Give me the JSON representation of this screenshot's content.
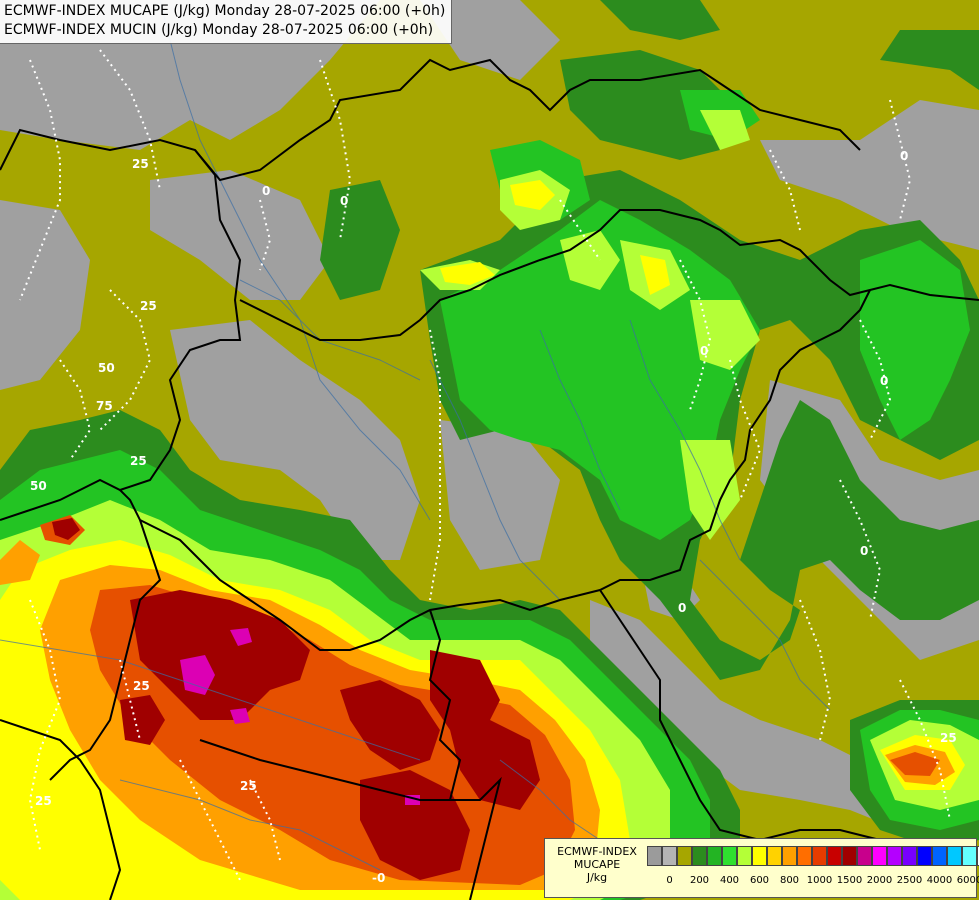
{
  "header": {
    "line1": "ECMWF-INDEX MUCAPE (J/kg) Monday 28-07-2025 06:00 (+0h)",
    "line2": "ECMWF-INDEX MUCIN (J/kg) Monday 28-07-2025 06:00 (+0h)"
  },
  "legend": {
    "title1": "ECMWF-INDEX",
    "title2": "MUCAPE",
    "unit": "J/kg",
    "colors": [
      "#9b9b9b",
      "#b4b4b4",
      "#a6a600",
      "#2c8c1e",
      "#23b423",
      "#2fe02f",
      "#b4ff37",
      "#ffff00",
      "#ffd200",
      "#ffa000",
      "#ff6e00",
      "#e63c00",
      "#c80000",
      "#a00000",
      "#c8008c",
      "#ff00ff",
      "#b400ff",
      "#7800ff",
      "#0000ff",
      "#0064ff",
      "#00c8ff",
      "#64ffff",
      "#ffffff"
    ],
    "ticks": [
      "0",
      "200",
      "400",
      "600",
      "800",
      "1000",
      "1500",
      "2000",
      "2500",
      "4000",
      "6000"
    ]
  },
  "contour_labels": [
    "25",
    "0",
    "50",
    "75",
    "25",
    "0",
    "25",
    "0",
    "50",
    "25",
    "0",
    "0",
    "25",
    "-0",
    "0",
    "0",
    "25",
    "25"
  ]
}
